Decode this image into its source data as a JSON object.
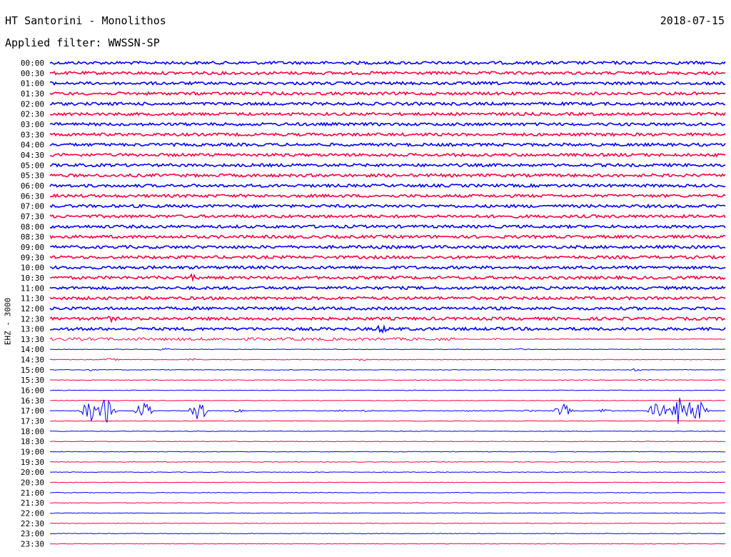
{
  "header": {
    "station": "HT Santorini - Monolithos",
    "date": "2018-07-15",
    "filter_label": "Applied filter: WWSSN-SP"
  },
  "chart_data": {
    "type": "line",
    "title": "HT Santorini - Monolithos",
    "subtitle": "Applied filter: WWSSN-SP",
    "ylabel": "EHZ - 3000",
    "xlabel": "",
    "grid": false,
    "row_labels": [
      "00:00",
      "00:30",
      "01:00",
      "01:30",
      "02:00",
      "02:30",
      "03:00",
      "03:30",
      "04:00",
      "04:30",
      "05:00",
      "05:30",
      "06:00",
      "06:30",
      "07:00",
      "07:30",
      "08:00",
      "08:30",
      "09:00",
      "09:30",
      "10:00",
      "10:30",
      "11:00",
      "11:30",
      "12:00",
      "12:30",
      "13:00",
      "13:30",
      "14:00",
      "14:30",
      "15:00",
      "15:30",
      "16:00",
      "16:30",
      "17:00",
      "17:30",
      "18:00",
      "18:30",
      "19:00",
      "19:30",
      "20:00",
      "20:30",
      "21:00",
      "21:30",
      "22:00",
      "22:30",
      "23:00",
      "23:30"
    ],
    "series_colors": [
      "#0000ff",
      "#ff0040"
    ],
    "data_end_fraction": 0.575,
    "events": [
      {
        "row": 5,
        "t": 0.36,
        "a": 0.25
      },
      {
        "row": 5,
        "t": 0.58,
        "a": 0.2
      },
      {
        "row": 5,
        "t": 0.75,
        "a": 0.25
      },
      {
        "row": 8,
        "t": 0.76,
        "a": 0.35
      },
      {
        "row": 8,
        "t": 0.99,
        "a": 0.3
      },
      {
        "row": 9,
        "t": 0.05,
        "a": 0.3
      },
      {
        "row": 9,
        "t": 0.13,
        "a": 0.2
      },
      {
        "row": 9,
        "t": 0.62,
        "a": 0.2
      },
      {
        "row": 10,
        "t": 0.76,
        "a": 0.25
      },
      {
        "row": 10,
        "t": 0.85,
        "a": 0.25
      },
      {
        "row": 12,
        "t": 0.46,
        "a": 0.2
      },
      {
        "row": 12,
        "t": 0.74,
        "a": 0.25
      },
      {
        "row": 12,
        "t": 0.84,
        "a": 0.25
      },
      {
        "row": 13,
        "t": 0.22,
        "a": 0.2
      },
      {
        "row": 13,
        "t": 0.37,
        "a": 0.2
      },
      {
        "row": 13,
        "t": 0.97,
        "a": 0.3
      },
      {
        "row": 14,
        "t": 0.02,
        "a": 0.35
      },
      {
        "row": 14,
        "t": 0.66,
        "a": 0.2
      },
      {
        "row": 18,
        "t": 0.55,
        "a": 0.2
      },
      {
        "row": 19,
        "t": 0.0,
        "a": 0.3
      },
      {
        "row": 19,
        "t": 0.15,
        "a": 0.2
      },
      {
        "row": 19,
        "t": 0.86,
        "a": 0.3
      },
      {
        "row": 20,
        "t": 0.12,
        "a": 0.4
      },
      {
        "row": 20,
        "t": 0.92,
        "a": 0.5
      },
      {
        "row": 20,
        "t": 0.96,
        "a": 0.3
      },
      {
        "row": 21,
        "t": 0.16,
        "a": 0.4
      },
      {
        "row": 21,
        "t": 0.21,
        "a": 0.7
      },
      {
        "row": 21,
        "t": 0.32,
        "a": 0.3
      },
      {
        "row": 21,
        "t": 0.64,
        "a": 0.2
      },
      {
        "row": 22,
        "t": 0.2,
        "a": 0.2
      },
      {
        "row": 22,
        "t": 0.77,
        "a": 0.2
      },
      {
        "row": 22,
        "t": 0.92,
        "a": 0.35
      },
      {
        "row": 23,
        "t": 0.6,
        "a": 0.25
      },
      {
        "row": 23,
        "t": 0.82,
        "a": 0.2
      },
      {
        "row": 24,
        "t": 0.67,
        "a": 0.25
      },
      {
        "row": 25,
        "t": 0.09,
        "a": 0.6
      },
      {
        "row": 25,
        "t": 0.24,
        "a": 0.2
      },
      {
        "row": 25,
        "t": 0.73,
        "a": 0.3
      },
      {
        "row": 26,
        "t": 0.1,
        "a": 0.25
      },
      {
        "row": 26,
        "t": 0.21,
        "a": 0.45
      },
      {
        "row": 26,
        "t": 0.29,
        "a": 0.3
      },
      {
        "row": 26,
        "t": 0.49,
        "a": 0.9
      },
      {
        "row": 27,
        "t": 0.0,
        "a": 0.25
      },
      {
        "row": 27,
        "t": 0.66,
        "a": 0.2
      },
      {
        "row": 28,
        "t": 0.17,
        "a": 0.25
      },
      {
        "row": 28,
        "t": 0.7,
        "a": 0.25
      },
      {
        "row": 29,
        "t": 0.09,
        "a": 0.3
      },
      {
        "row": 29,
        "t": 0.21,
        "a": 0.3
      },
      {
        "row": 29,
        "t": 0.46,
        "a": 0.25
      },
      {
        "row": 30,
        "t": 0.06,
        "a": 0.2
      },
      {
        "row": 30,
        "t": 0.87,
        "a": 0.3
      },
      {
        "row": 31,
        "t": 0.88,
        "a": 0.3
      },
      {
        "row": 34,
        "t": 0.28,
        "a": 0.35
      },
      {
        "row": 34,
        "t": 0.43,
        "a": 0.2
      },
      {
        "row": 34,
        "t": 0.47,
        "a": 0.25
      },
      {
        "row": 34,
        "t": 0.62,
        "a": 0.2
      },
      {
        "row": 34,
        "t": 0.71,
        "a": 0.2
      },
      {
        "row": 34,
        "t": 0.82,
        "a": 0.5
      },
      {
        "row": 34,
        "t": 0.06,
        "a": 2.5
      },
      {
        "row": 34,
        "t": 0.083,
        "a": 3.0
      },
      {
        "row": 34,
        "t": 0.14,
        "a": 2.2
      },
      {
        "row": 34,
        "t": 0.22,
        "a": 2.5
      },
      {
        "row": 34,
        "t": 0.76,
        "a": 1.4
      },
      {
        "row": 34,
        "t": 0.9,
        "a": 2.2
      },
      {
        "row": 34,
        "t": 0.93,
        "a": 3.0
      },
      {
        "row": 34,
        "t": 0.945,
        "a": 2.5
      },
      {
        "row": 34,
        "t": 0.96,
        "a": 2.2
      }
    ]
  }
}
